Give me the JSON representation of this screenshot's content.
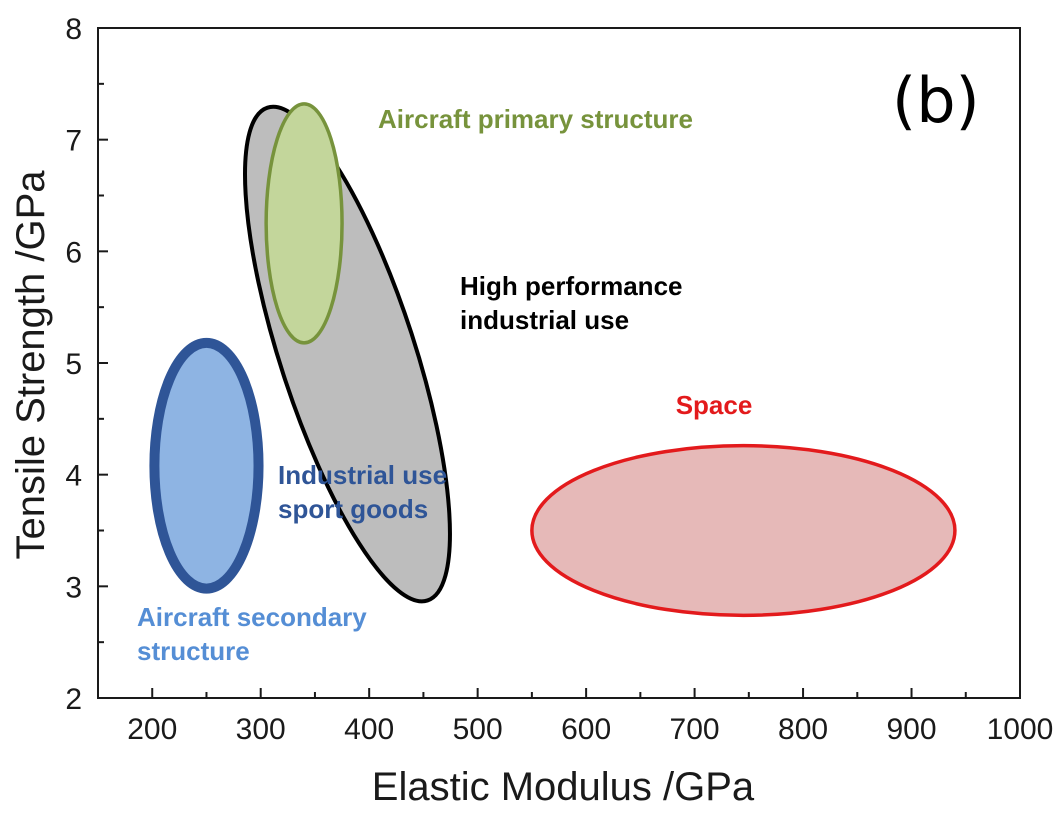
{
  "chart_data": {
    "type": "scatter",
    "title": "",
    "panel_label": "(b)",
    "xlabel": "Elastic Modulus /GPa",
    "ylabel": "Tensile Strength /GPa",
    "xlim": [
      150,
      1000
    ],
    "ylim": [
      2,
      8
    ],
    "x_ticks": [
      200,
      300,
      400,
      500,
      600,
      700,
      800,
      900,
      1000
    ],
    "y_ticks": [
      2,
      3,
      4,
      5,
      6,
      7,
      8
    ],
    "grid": false,
    "legend": "none",
    "regions": [
      {
        "label_lines": [
          "High performance",
          "industrial use"
        ],
        "shape": "ellipse",
        "center": [
          380,
          5.08
        ],
        "semi_axes_data": [
          62,
          2.32
        ],
        "tilt_deg": -18,
        "fill": "#bdbdbd",
        "stroke": "#000000"
      },
      {
        "label_lines": [
          "Aircraft primary structure"
        ],
        "shape": "ellipse",
        "center": [
          340,
          6.25
        ],
        "semi_axes_data": [
          35,
          1.07
        ],
        "tilt_deg": 0,
        "fill": "#c3d69b",
        "stroke": "#77933c"
      },
      {
        "label_lines": [
          "Industrial use",
          "sport goods"
        ],
        "shape": "ellipse",
        "center": [
          250,
          4.08
        ],
        "semi_axes_data": [
          48,
          1.1
        ],
        "tilt_deg": 0,
        "fill": "#8eb4e3",
        "stroke": "#2f5597",
        "label_color": "#2f5597"
      },
      {
        "label_lines": [
          "Aircraft secondary",
          "structure"
        ],
        "label_color": "#558ed5"
      },
      {
        "label_lines": [
          "Space"
        ],
        "shape": "ellipse",
        "center": [
          745,
          3.5
        ],
        "semi_axes_data": [
          195,
          0.76
        ],
        "tilt_deg": 0,
        "fill": "#e6b9b8",
        "stroke": "#e31a1c"
      }
    ]
  }
}
